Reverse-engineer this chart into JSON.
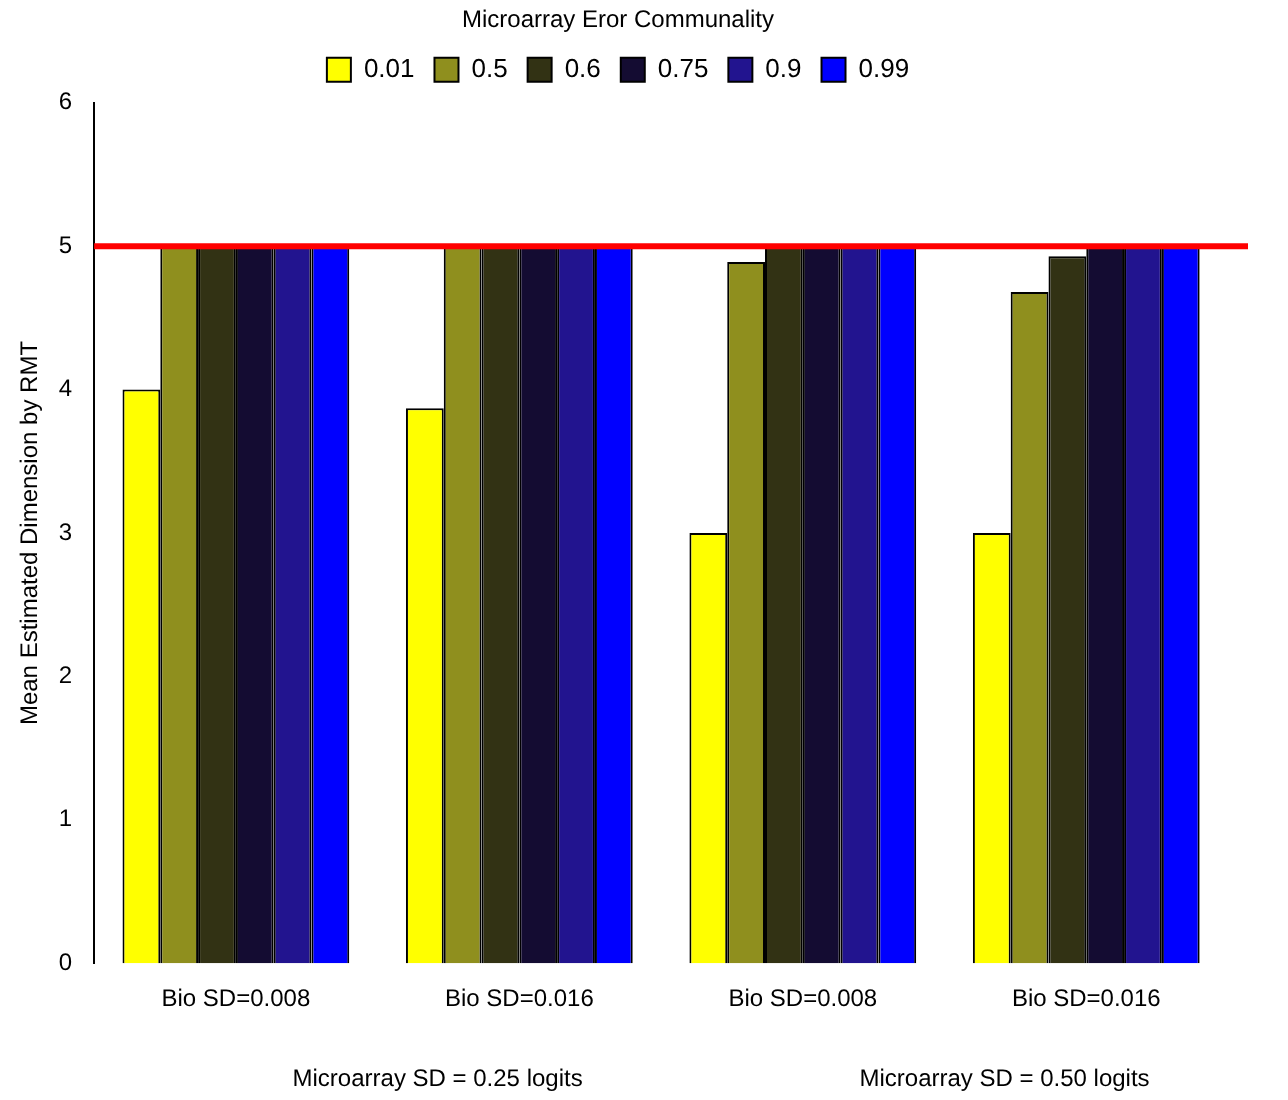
{
  "chart_data": {
    "type": "bar",
    "ylabel": "Mean Estimated Dimension by RMT",
    "legend_title": "Microarray Eror Communality",
    "legend": "top",
    "categories": [
      "Bio SD=0.008",
      "Bio SD=0.016",
      "Bio SD=0.008",
      "Bio SD=0.016"
    ],
    "series": [
      {
        "name": "0.01",
        "color": "#ffff00",
        "values": [
          4.0,
          3.87,
          3.0,
          3.0
        ]
      },
      {
        "name": "0.5",
        "color": "#8f8f1e",
        "values": [
          5,
          5,
          4.89,
          4.68
        ]
      },
      {
        "name": "0.6",
        "color": "#323214",
        "values": [
          5,
          5,
          5,
          4.93
        ]
      },
      {
        "name": "0.75",
        "color": "#140c32",
        "values": [
          5,
          5,
          5,
          5
        ]
      },
      {
        "name": "0.9",
        "color": "#22148f",
        "values": [
          5,
          5,
          5,
          5
        ]
      },
      {
        "name": "0.99",
        "color": "#0000ff",
        "values": [
          5,
          5,
          5,
          5
        ]
      }
    ],
    "ylim": [
      0,
      6
    ],
    "yticks": [
      0,
      1,
      2,
      3,
      4,
      5,
      6
    ],
    "grid": false,
    "ref_lines": [
      {
        "axis": "y",
        "value": 5,
        "color": "#ff0000"
      }
    ],
    "annotations": [
      "Microarray SD = 0.25 logits",
      "Microarray SD = 0.50 logits"
    ]
  }
}
